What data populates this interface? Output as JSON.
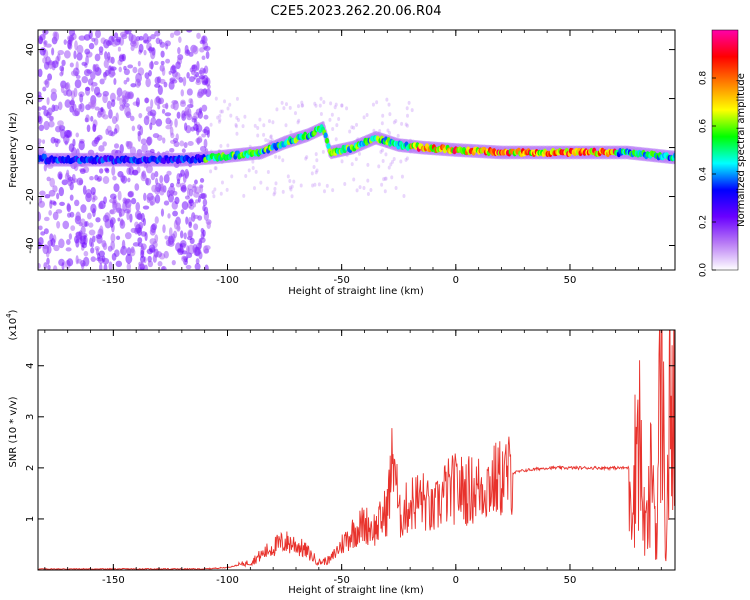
{
  "title": "C2E5.2023.262.20.06.R04",
  "chart_data": [
    {
      "type": "heatmap",
      "xlabel": "Height of straight line (km)",
      "ylabel": "Frequency (Hz)",
      "xlim": [
        -183,
        96
      ],
      "ylim": [
        -50,
        48
      ],
      "x_ticks": [
        -150,
        -100,
        -50,
        0,
        50
      ],
      "y_ticks": [
        -40,
        -20,
        0,
        20,
        40
      ],
      "colorbar": {
        "label": "Normalized spectral amplitude",
        "range": [
          0,
          1
        ],
        "ticks": [
          "0.0",
          "0.2",
          "0.4",
          "0.6",
          "0.8"
        ],
        "tick_values": [
          0,
          0.2,
          0.4,
          0.6,
          0.8
        ],
        "colormap": [
          "#ffffff",
          "#b97cf5",
          "#6a00ff",
          "#0000ff",
          "#00ffff",
          "#00ff00",
          "#ffff00",
          "#ff8000",
          "#ff0000",
          "#ff00aa"
        ]
      },
      "ridge": [
        {
          "x": -180,
          "f": -5
        },
        {
          "x": -160,
          "f": -5
        },
        {
          "x": -140,
          "f": -5
        },
        {
          "x": -120,
          "f": -5
        },
        {
          "x": -105,
          "f": -4
        },
        {
          "x": -95,
          "f": -3
        },
        {
          "x": -85,
          "f": -2
        },
        {
          "x": -75,
          "f": 2
        },
        {
          "x": -65,
          "f": 5
        },
        {
          "x": -58,
          "f": 8
        },
        {
          "x": -55,
          "f": -2
        },
        {
          "x": -45,
          "f": 0
        },
        {
          "x": -35,
          "f": 4
        },
        {
          "x": -25,
          "f": 1
        },
        {
          "x": -15,
          "f": 0
        },
        {
          "x": 0,
          "f": -1
        },
        {
          "x": 20,
          "f": -2
        },
        {
          "x": 50,
          "f": -2
        },
        {
          "x": 75,
          "f": -2
        },
        {
          "x": 85,
          "f": -3
        },
        {
          "x": 95,
          "f": -4
        }
      ]
    },
    {
      "type": "line",
      "xlabel": "Height of straight line (km)",
      "ylabel": "SNR (10 * v/v)",
      "y_scale_label": "(x10",
      "y_scale_exponent": "4",
      "xlim": [
        -183,
        96
      ],
      "ylim": [
        0,
        4.7
      ],
      "x_ticks": [
        -150,
        -100,
        -50,
        0,
        50
      ],
      "y_ticks": [
        1,
        2,
        3,
        4
      ],
      "color": "#e8322c",
      "x": [
        -183,
        -110,
        -100,
        -90,
        -85,
        -80,
        -75,
        -70,
        -65,
        -60,
        -55,
        -50,
        -45,
        -40,
        -35,
        -30,
        -27,
        -25,
        -20,
        -15,
        -10,
        -5,
        0,
        5,
        10,
        15,
        20,
        25,
        30,
        40,
        50,
        60,
        70,
        76,
        78,
        80,
        82,
        84,
        86,
        88,
        90,
        92,
        94,
        96
      ],
      "y": [
        0.02,
        0.02,
        0.05,
        0.15,
        0.3,
        0.45,
        0.55,
        0.5,
        0.35,
        0.15,
        0.2,
        0.5,
        0.75,
        0.9,
        0.8,
        1.2,
        2.4,
        1.0,
        1.3,
        1.4,
        1.1,
        1.5,
        1.6,
        1.55,
        1.6,
        1.7,
        1.8,
        1.9,
        1.95,
        2.0,
        2.0,
        2.0,
        2.0,
        2.0,
        1.6,
        3.3,
        1.0,
        0.8,
        2.2,
        0.5,
        4.6,
        0.3,
        3.5,
        2.8
      ]
    }
  ]
}
